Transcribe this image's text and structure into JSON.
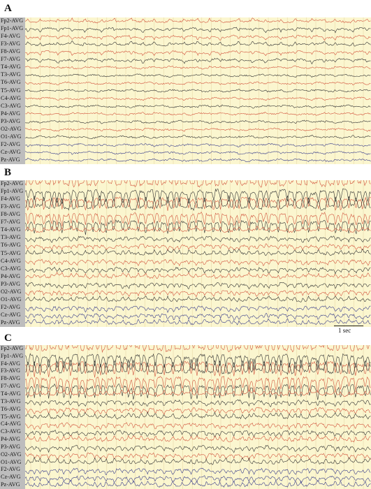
{
  "channels": [
    "Fp2-AVG",
    "Fp1-AVG",
    "F4-AVG",
    "F3-AVG",
    "F8-AVG",
    "F7-AVG",
    "T4-AVG",
    "T3-AVG",
    "T6-AVG",
    "T5-AVG",
    "C4-AVG",
    "C3-AVG",
    "P4-AVG",
    "P3-AVG",
    "O2-AVG",
    "O1-AVG",
    "F2-AVG",
    "Cz-AVG",
    "Pz-AVG"
  ],
  "panels": [
    {
      "id": "A",
      "label": "A",
      "activity": 0.25
    },
    {
      "id": "B",
      "label": "B",
      "activity": 0.9
    },
    {
      "id": "C",
      "label": "C",
      "activity": 1.0
    }
  ],
  "scalebar": {
    "label": "1 sec"
  },
  "colors": {
    "background": "#fbf6cf",
    "label_column": "#bdbdbd",
    "trace_red": "#d2553e",
    "trace_dark": "#333333",
    "trace_blue": "#3b3f8c",
    "gridline": "#c9a66a"
  }
}
